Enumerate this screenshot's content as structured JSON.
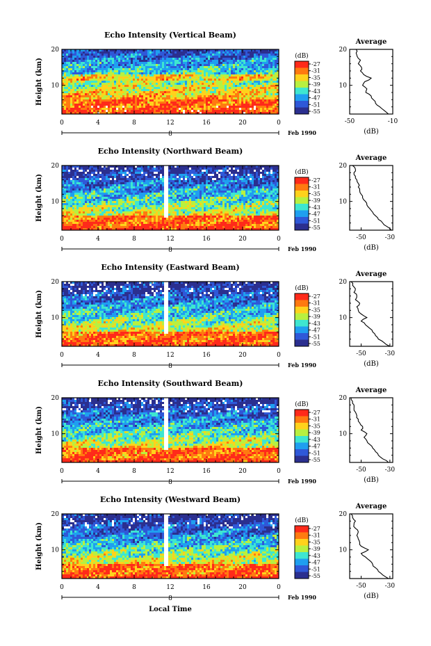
{
  "figure": {
    "xlabel": "Local Time",
    "xticks": [
      "0",
      "4",
      "8",
      "12",
      "16",
      "20",
      "0"
    ],
    "ylabel": "Height (km)",
    "yticks": [
      "20",
      "10"
    ],
    "date_marker": "8",
    "date_label": "Feb 1990",
    "colorbar_unit": "(dB)",
    "colorbar_ticks": [
      "-27",
      "-31",
      "-35",
      "-39",
      "-43",
      "-47",
      "-51",
      "-55"
    ],
    "colorbar_colors": [
      "#ff2a1a",
      "#ff7a10",
      "#ffd21c",
      "#b8f040",
      "#3ee6d0",
      "#1f9ff0",
      "#2f58d8",
      "#2b2f8f"
    ],
    "avg_title": "Average",
    "avg_xlabel": "(dB)"
  },
  "chart_data": [
    {
      "type": "heatmap",
      "title": "Echo Intensity (Vertical Beam)",
      "xlabel": "",
      "ylabel": "Height (km)",
      "x_range_hours": [
        0,
        24
      ],
      "y_range_km": [
        2,
        20
      ],
      "color_range_db": [
        -55,
        -27
      ],
      "avg_profile": {
        "xticks": [
          "-50",
          "-10"
        ],
        "xlim": [
          -50,
          -10
        ],
        "height_km": [
          2,
          3,
          4,
          5,
          6,
          7,
          8,
          9,
          10,
          11,
          12,
          13,
          14,
          15,
          16,
          17,
          18,
          19,
          20
        ],
        "db": [
          -14,
          -18,
          -22,
          -26,
          -28,
          -30,
          -35,
          -34,
          -38,
          -36,
          -30,
          -37,
          -40,
          -39,
          -42,
          -40,
          -43,
          -44,
          -44
        ]
      }
    },
    {
      "type": "heatmap",
      "title": "Echo Intensity (Northward Beam)",
      "xlabel": "",
      "ylabel": "Height (km)",
      "x_range_hours": [
        0,
        24
      ],
      "y_range_km": [
        2,
        20
      ],
      "color_range_db": [
        -55,
        -27
      ],
      "avg_profile": {
        "xticks": [
          "-50",
          "-30"
        ],
        "xlim": [
          -58,
          -28
        ],
        "height_km": [
          2,
          3,
          4,
          5,
          6,
          7,
          8,
          9,
          10,
          11,
          12,
          13,
          14,
          15,
          16,
          17,
          18,
          19,
          20
        ],
        "db": [
          -29,
          -32,
          -35,
          -38,
          -40,
          -42,
          -44,
          -46,
          -47,
          -49,
          -50,
          -51,
          -52,
          -52,
          -53,
          -54,
          -55,
          -54,
          -56
        ]
      }
    },
    {
      "type": "heatmap",
      "title": "Echo Intensity (Eastward Beam)",
      "xlabel": "",
      "ylabel": "Height (km)",
      "x_range_hours": [
        0,
        24
      ],
      "y_range_km": [
        2,
        20
      ],
      "color_range_db": [
        -55,
        -27
      ],
      "avg_profile": {
        "xticks": [
          "-50",
          "-30"
        ],
        "xlim": [
          -58,
          -28
        ],
        "height_km": [
          2,
          3,
          4,
          5,
          6,
          7,
          8,
          9,
          10,
          11,
          12,
          13,
          14,
          15,
          16,
          17,
          18,
          19,
          20
        ],
        "db": [
          -30,
          -34,
          -38,
          -40,
          -42,
          -44,
          -47,
          -50,
          -46,
          -50,
          -52,
          -53,
          -51,
          -54,
          -53,
          -55,
          -54,
          -56,
          -57
        ]
      }
    },
    {
      "type": "heatmap",
      "title": "Echo Intensity (Southward Beam)",
      "xlabel": "",
      "ylabel": "Height (km)",
      "x_range_hours": [
        0,
        24
      ],
      "y_range_km": [
        2,
        20
      ],
      "color_range_db": [
        -55,
        -27
      ],
      "avg_profile": {
        "xticks": [
          "-50",
          "-30"
        ],
        "xlim": [
          -58,
          -28
        ],
        "height_km": [
          2,
          3,
          4,
          5,
          6,
          7,
          8,
          9,
          10,
          11,
          12,
          13,
          14,
          15,
          16,
          17,
          18,
          19,
          20
        ],
        "db": [
          -31,
          -35,
          -38,
          -40,
          -42,
          -44,
          -46,
          -48,
          -46,
          -50,
          -49,
          -51,
          -52,
          -53,
          -54,
          -55,
          -55,
          -56,
          -57
        ]
      }
    },
    {
      "type": "heatmap",
      "title": "Echo Intensity (Westward Beam)",
      "xlabel": "Local Time",
      "ylabel": "Height (km)",
      "x_range_hours": [
        0,
        24
      ],
      "y_range_km": [
        2,
        20
      ],
      "color_range_db": [
        -55,
        -27
      ],
      "avg_profile": {
        "xticks": [
          "-50",
          "-30"
        ],
        "xlim": [
          -58,
          -28
        ],
        "height_km": [
          2,
          3,
          4,
          5,
          6,
          7,
          8,
          9,
          10,
          11,
          12,
          13,
          14,
          15,
          16,
          17,
          18,
          19,
          20
        ],
        "db": [
          -31,
          -35,
          -38,
          -40,
          -42,
          -44,
          -47,
          -50,
          -45,
          -50,
          -51,
          -52,
          -53,
          -52,
          -54,
          -55,
          -54,
          -56,
          -57
        ]
      }
    }
  ]
}
